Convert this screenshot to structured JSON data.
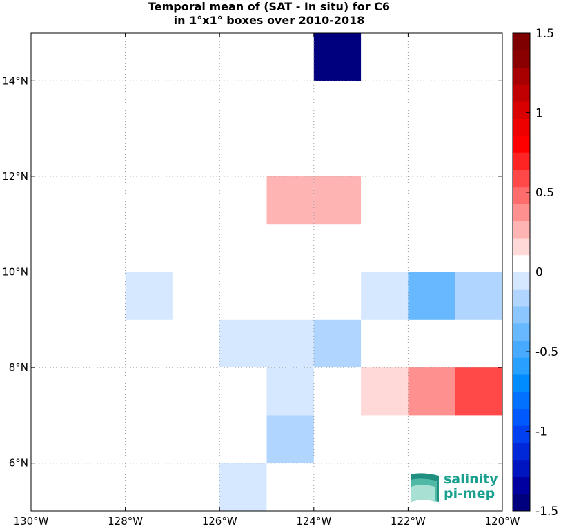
{
  "title_line1": "Temporal mean of (SAT - In situ) for C6",
  "title_line2": "in 1°x1° boxes over 2010-2018",
  "logo": {
    "line1": "salinity",
    "line2": "pi-mep",
    "color": "#1aa08f"
  },
  "chart_data": {
    "type": "heatmap",
    "title": "Temporal mean of (SAT - In situ) for C6 in 1°x1° boxes over 2010-2018",
    "xlim": [
      -130,
      -120
    ],
    "ylim": [
      5,
      15
    ],
    "xticks": [
      -130,
      -128,
      -126,
      -124,
      -122,
      -120
    ],
    "xtick_labels": [
      "130°W",
      "128°W",
      "126°W",
      "124°W",
      "122°W",
      "120°W"
    ],
    "yticks": [
      6,
      8,
      10,
      12,
      14
    ],
    "ytick_labels": [
      "6°N",
      "8°N",
      "10°N",
      "12°N",
      "14°N"
    ],
    "grid": true,
    "cell_size_deg": 1,
    "cells": [
      {
        "lon": -124,
        "lat": 14,
        "value": -1.5
      },
      {
        "lon": -125,
        "lat": 11,
        "value": 0.3
      },
      {
        "lon": -124,
        "lat": 11,
        "value": 0.3
      },
      {
        "lon": -128,
        "lat": 9,
        "value": -0.1
      },
      {
        "lon": -123,
        "lat": 9,
        "value": -0.1
      },
      {
        "lon": -122,
        "lat": 9,
        "value": -0.35
      },
      {
        "lon": -121,
        "lat": 9,
        "value": -0.2
      },
      {
        "lon": -126,
        "lat": 8,
        "value": -0.1
      },
      {
        "lon": -125,
        "lat": 8,
        "value": -0.1
      },
      {
        "lon": -124,
        "lat": 8,
        "value": -0.2
      },
      {
        "lon": -125,
        "lat": 7,
        "value": -0.1
      },
      {
        "lon": -123,
        "lat": 7,
        "value": 0.15
      },
      {
        "lon": -122,
        "lat": 7,
        "value": 0.4
      },
      {
        "lon": -121,
        "lat": 7,
        "value": 0.55
      },
      {
        "lon": -125,
        "lat": 6,
        "value": -0.2
      },
      {
        "lon": -126,
        "lat": 5,
        "value": -0.1
      }
    ],
    "colorbar": {
      "range": [
        -1.5,
        1.5
      ],
      "ticks": [
        -1.5,
        -1,
        -0.5,
        0,
        0.5,
        1,
        1.5
      ],
      "tick_labels": [
        "-1.5",
        "-1",
        "-0.5",
        "0",
        "0.5",
        "1",
        "1.5"
      ],
      "colors_low_to_high": [
        "#00007f",
        "#0000a0",
        "#0015c0",
        "#0028d8",
        "#0040f0",
        "#0058ff",
        "#0072ff",
        "#008cff",
        "#28a0ff",
        "#48aaff",
        "#68b8ff",
        "#8cc6ff",
        "#b0d6ff",
        "#d6e8ff",
        "#ffffff",
        "#ffd8d8",
        "#ffb4b4",
        "#ff9090",
        "#ff6c6c",
        "#ff4848",
        "#ff2424",
        "#ff0000",
        "#ef0000",
        "#d80000",
        "#c00000",
        "#a80000",
        "#8a0000",
        "#7f0000"
      ]
    }
  }
}
